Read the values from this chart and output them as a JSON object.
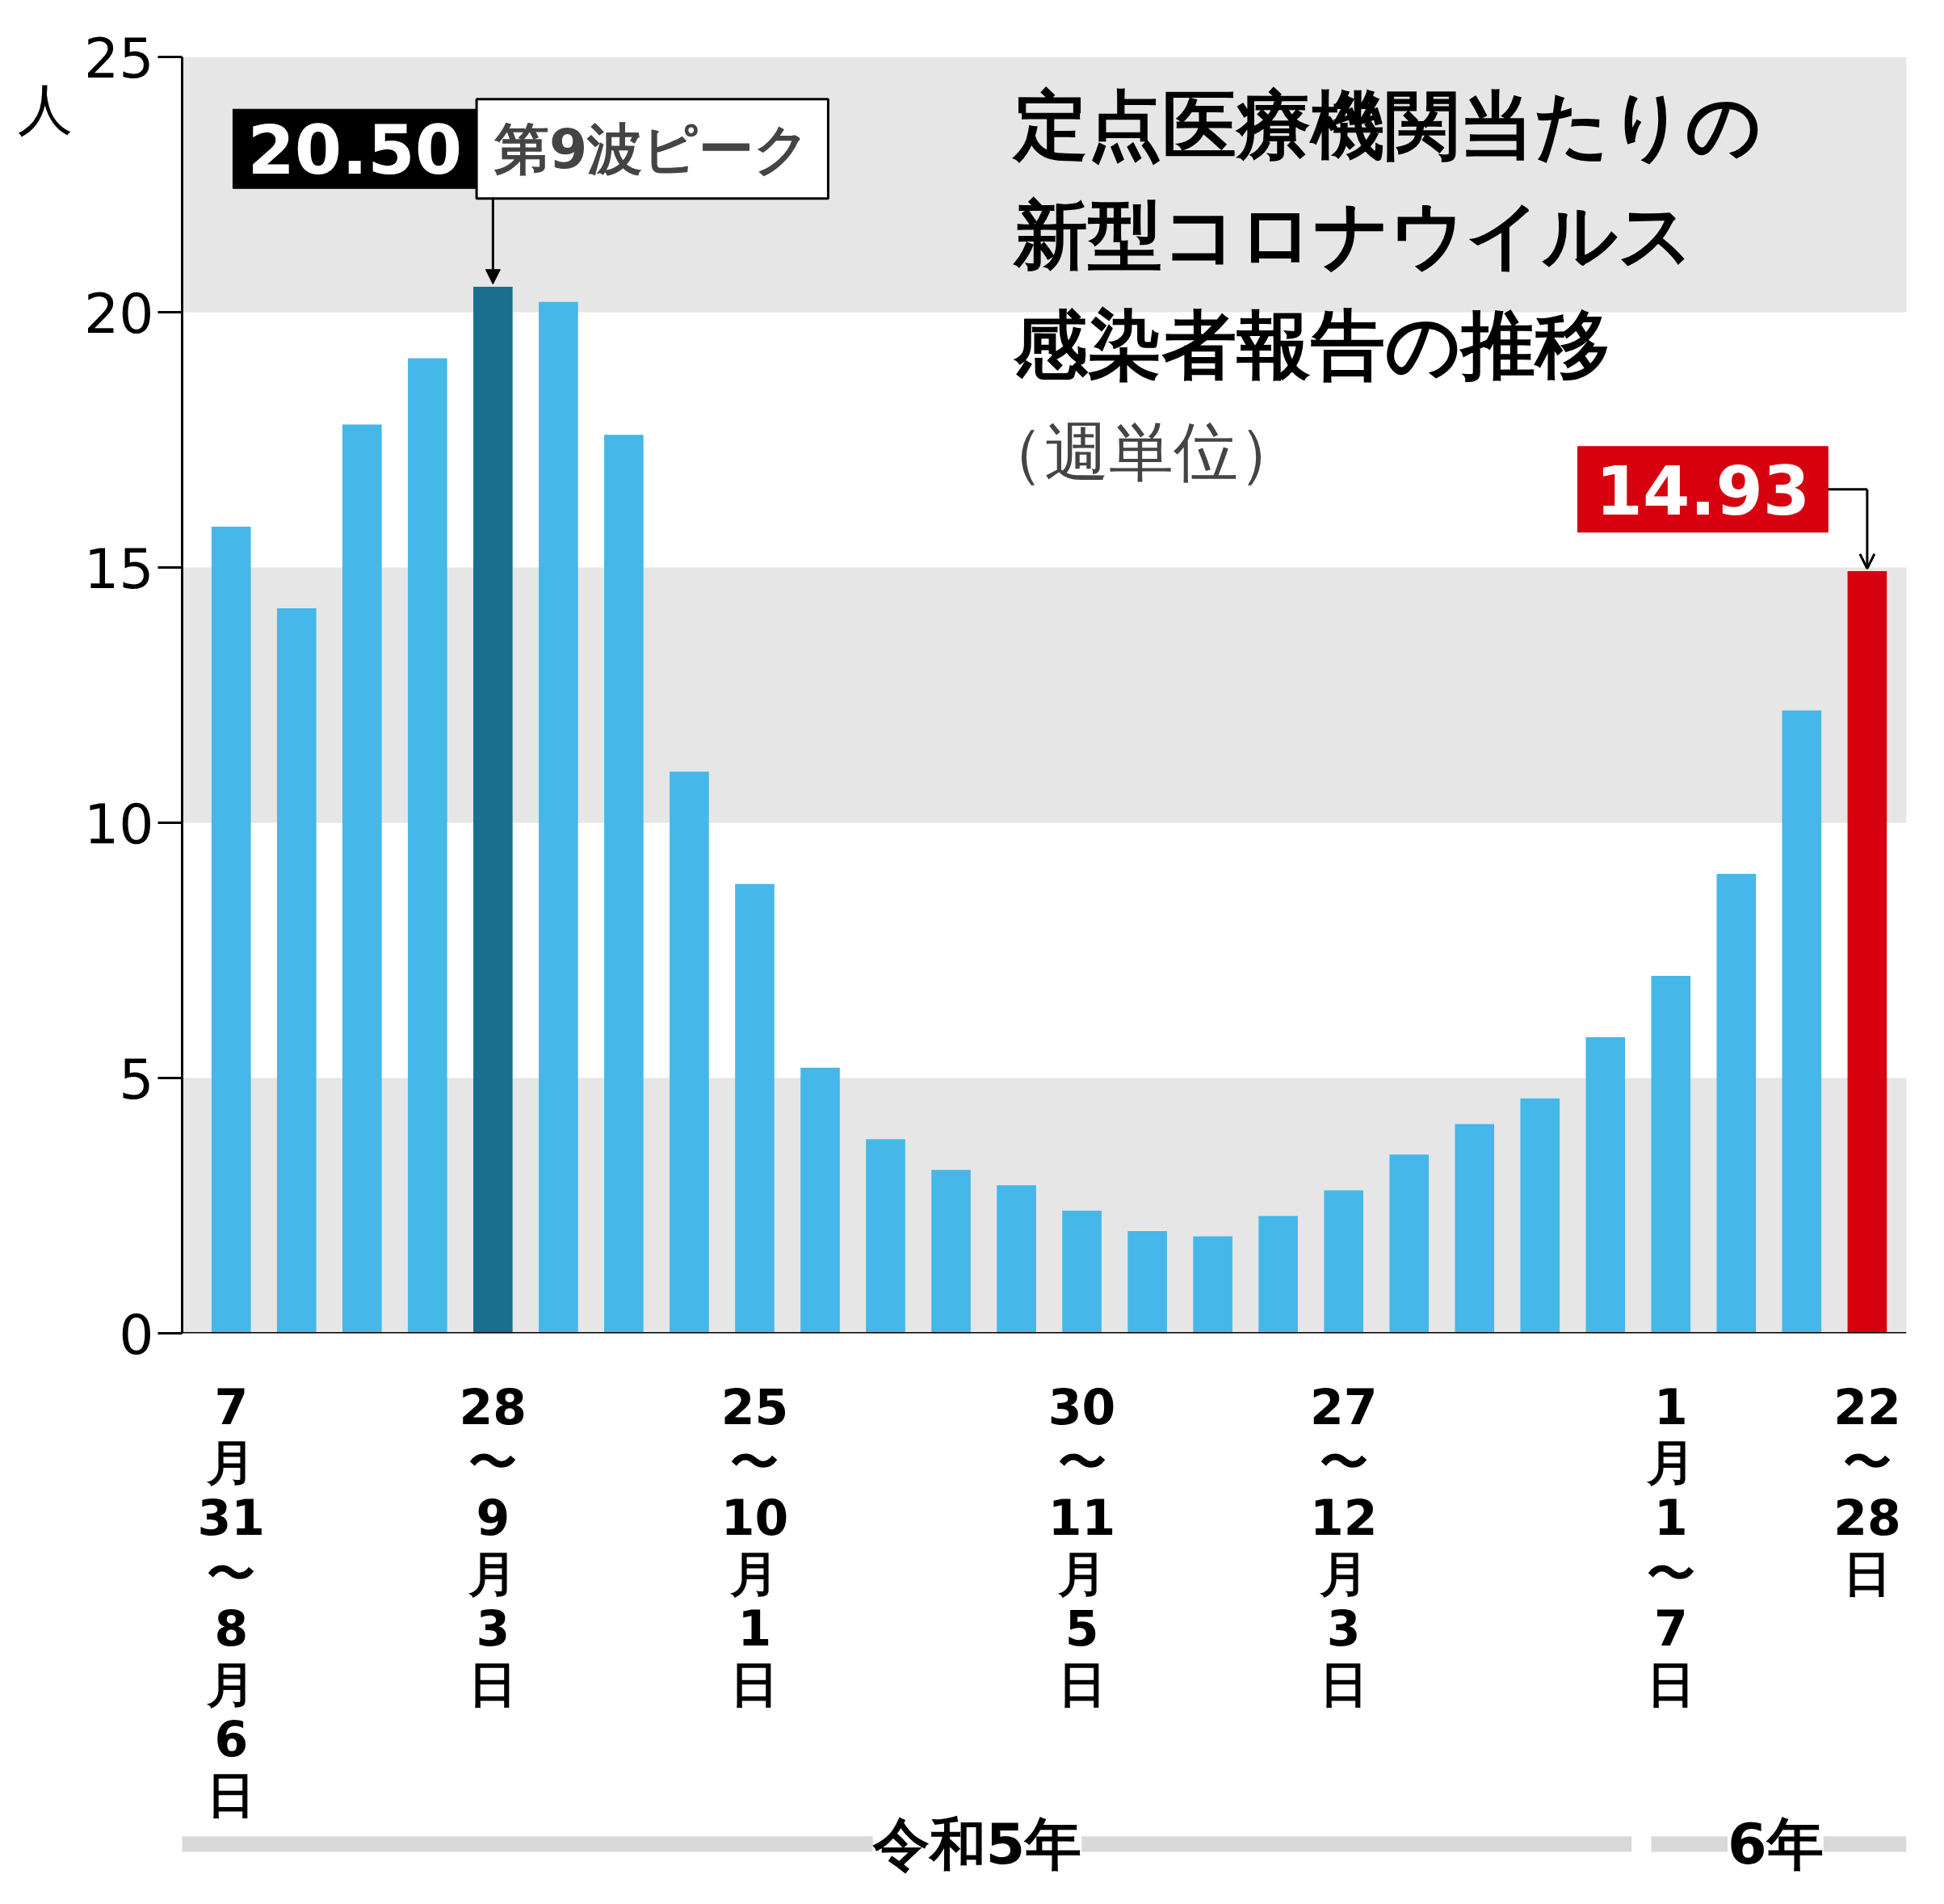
{
  "chart_data": {
    "type": "bar",
    "title": "定点医療機関当たりの新型コロナウイルス感染者報告の推移",
    "subtitle": "（週単位）",
    "ylabel": "人",
    "categories": [
      "7月31〜8月6日",
      null,
      null,
      null,
      "28〜9月3日",
      null,
      null,
      null,
      "25〜10月1日",
      null,
      null,
      null,
      null,
      "30〜11月5日",
      null,
      null,
      null,
      "27〜12月3日",
      null,
      null,
      null,
      null,
      "1月1〜7日",
      null,
      null,
      "22〜28日"
    ],
    "values": [
      15.8,
      14.2,
      17.8,
      19.1,
      20.5,
      20.2,
      17.6,
      11.0,
      8.8,
      5.2,
      3.8,
      3.2,
      2.9,
      2.4,
      2.0,
      1.9,
      2.3,
      2.8,
      3.5,
      4.1,
      4.6,
      5.8,
      7.0,
      9.0,
      12.2,
      14.93
    ],
    "colors": [
      "#45b7e8",
      "#45b7e8",
      "#45b7e8",
      "#45b7e8",
      "#1a6e8e",
      "#45b7e8",
      "#45b7e8",
      "#45b7e8",
      "#45b7e8",
      "#45b7e8",
      "#45b7e8",
      "#45b7e8",
      "#45b7e8",
      "#45b7e8",
      "#45b7e8",
      "#45b7e8",
      "#45b7e8",
      "#45b7e8",
      "#45b7e8",
      "#45b7e8",
      "#45b7e8",
      "#45b7e8",
      "#45b7e8",
      "#45b7e8",
      "#45b7e8",
      "#d7000f"
    ],
    "value_labels": [
      null,
      null,
      null,
      null,
      "20.50",
      null,
      null,
      null,
      null,
      null,
      null,
      null,
      null,
      null,
      null,
      null,
      null,
      null,
      null,
      null,
      null,
      null,
      null,
      null,
      null,
      "14.93"
    ],
    "ylim": [
      0,
      25
    ],
    "yticks": [
      0,
      5,
      10,
      15,
      20,
      25
    ],
    "bands": [
      {
        "axis": "y",
        "from": 0,
        "to": 5,
        "color": "#e6e6e6"
      },
      {
        "axis": "y",
        "from": 10,
        "to": 15,
        "color": "#e6e6e6"
      },
      {
        "axis": "y",
        "from": 20,
        "to": 25,
        "color": "#e6e6e6"
      }
    ],
    "annotations": [
      {
        "text": "第9波ピーク",
        "x": "28〜9月3日",
        "y": 20.5
      },
      "令和5年",
      "6年"
    ],
    "grid": false
  }
}
